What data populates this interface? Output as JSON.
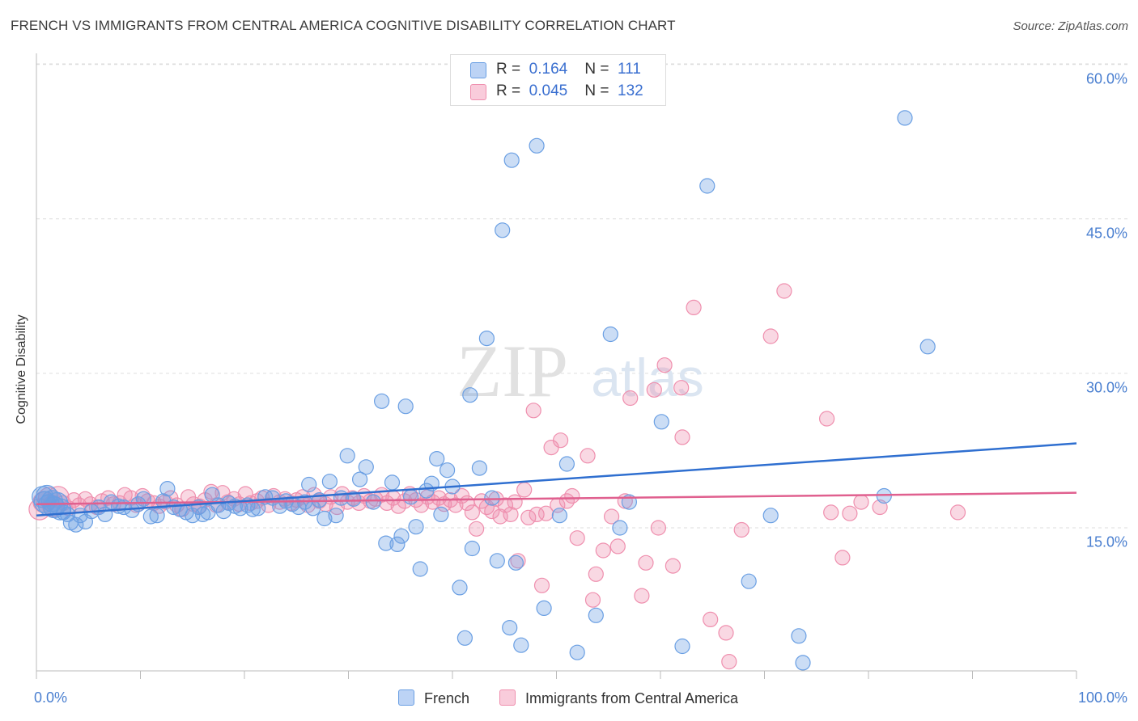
{
  "header": {
    "title": "FRENCH VS IMMIGRANTS FROM CENTRAL AMERICA COGNITIVE DISABILITY CORRELATION CHART",
    "source": "Source: ZipAtlas.com"
  },
  "watermark": {
    "zip": "ZIP",
    "atlas": "atlas"
  },
  "legend": {
    "rows": [
      {
        "r_label": "R =",
        "r_value": "0.164",
        "n_label": "N =",
        "n_value": "111"
      },
      {
        "r_label": "R =",
        "r_value": "0.045",
        "n_label": "N =",
        "n_value": "132"
      }
    ]
  },
  "colors": {
    "french": "#6a9fe3",
    "french_line": "#2f6fd0",
    "immigrants": "#ef8fae",
    "immigrants_line": "#e0608f",
    "tick_text": "#4a7fd0"
  },
  "chart_data": {
    "type": "scatter",
    "title": "FRENCH VS IMMIGRANTS FROM CENTRAL AMERICA COGNITIVE DISABILITY CORRELATION CHART",
    "xlabel": "",
    "ylabel": "Cognitive Disability",
    "xlim": [
      0,
      100
    ],
    "ylim": [
      0,
      62
    ],
    "x_tick_labels": [
      "0.0%",
      "100.0%"
    ],
    "y_ticks": [
      15,
      30,
      45,
      60
    ],
    "y_tick_labels": [
      "15.0%",
      "30.0%",
      "45.0%",
      "60.0%"
    ],
    "grid": true,
    "legend_position": "top-center",
    "series": [
      {
        "name": "French",
        "r": 0.164,
        "n": 111,
        "trend": [
          [
            0,
            16.2
          ],
          [
            100,
            23.2
          ]
        ],
        "points": [
          [
            0.6,
            18.0
          ],
          [
            0.8,
            17.5
          ],
          [
            1.0,
            18.1
          ],
          [
            1.2,
            17.2
          ],
          [
            1.5,
            17.6
          ],
          [
            1.7,
            17.0
          ],
          [
            2.0,
            17.4
          ],
          [
            2.3,
            16.8
          ],
          [
            2.6,
            16.5
          ],
          [
            3.0,
            16.3
          ],
          [
            3.3,
            15.5
          ],
          [
            3.8,
            15.3
          ],
          [
            4.2,
            16.2
          ],
          [
            4.7,
            15.6
          ],
          [
            5.3,
            16.6
          ],
          [
            6.0,
            17.0
          ],
          [
            6.6,
            16.3
          ],
          [
            7.2,
            17.5
          ],
          [
            7.9,
            17.1
          ],
          [
            8.4,
            17.0
          ],
          [
            9.2,
            16.7
          ],
          [
            9.8,
            17.3
          ],
          [
            10.3,
            17.8
          ],
          [
            11.0,
            16.1
          ],
          [
            11.6,
            16.2
          ],
          [
            12.2,
            17.6
          ],
          [
            12.6,
            18.8
          ],
          [
            13.2,
            17.0
          ],
          [
            13.8,
            16.8
          ],
          [
            14.4,
            16.5
          ],
          [
            15.0,
            16.2
          ],
          [
            15.6,
            17.0
          ],
          [
            16.0,
            16.3
          ],
          [
            16.5,
            16.5
          ],
          [
            16.9,
            18.2
          ],
          [
            17.5,
            17.2
          ],
          [
            18.0,
            16.6
          ],
          [
            18.5,
            17.4
          ],
          [
            19.1,
            17.1
          ],
          [
            19.6,
            16.9
          ],
          [
            20.3,
            17.2
          ],
          [
            20.8,
            16.8
          ],
          [
            21.3,
            16.9
          ],
          [
            22.0,
            18.0
          ],
          [
            22.7,
            17.9
          ],
          [
            23.4,
            17.1
          ],
          [
            24.0,
            17.6
          ],
          [
            24.6,
            17.3
          ],
          [
            25.2,
            17.0
          ],
          [
            25.8,
            17.5
          ],
          [
            26.2,
            19.2
          ],
          [
            26.6,
            16.9
          ],
          [
            27.2,
            17.7
          ],
          [
            27.7,
            15.9
          ],
          [
            28.2,
            19.5
          ],
          [
            28.8,
            16.2
          ],
          [
            29.3,
            17.9
          ],
          [
            29.9,
            22.0
          ],
          [
            30.5,
            17.8
          ],
          [
            31.1,
            19.7
          ],
          [
            31.7,
            20.9
          ],
          [
            32.4,
            17.5
          ],
          [
            33.2,
            27.3
          ],
          [
            33.6,
            13.5
          ],
          [
            34.2,
            19.4
          ],
          [
            34.7,
            13.4
          ],
          [
            35.1,
            14.2
          ],
          [
            35.5,
            26.8
          ],
          [
            36.0,
            18.0
          ],
          [
            36.5,
            15.1
          ],
          [
            36.9,
            11.0
          ],
          [
            37.5,
            18.6
          ],
          [
            38.0,
            19.3
          ],
          [
            38.5,
            21.7
          ],
          [
            38.9,
            16.3
          ],
          [
            39.5,
            20.6
          ],
          [
            40.0,
            19.0
          ],
          [
            40.7,
            9.2
          ],
          [
            41.2,
            4.3
          ],
          [
            41.7,
            27.9
          ],
          [
            41.9,
            13.0
          ],
          [
            42.6,
            20.8
          ],
          [
            43.3,
            33.4
          ],
          [
            43.8,
            17.9
          ],
          [
            44.3,
            11.8
          ],
          [
            44.8,
            43.9
          ],
          [
            45.5,
            5.3
          ],
          [
            45.7,
            50.7
          ],
          [
            46.1,
            11.6
          ],
          [
            46.6,
            3.6
          ],
          [
            48.1,
            52.1
          ],
          [
            48.8,
            7.2
          ],
          [
            50.3,
            16.2
          ],
          [
            51.0,
            21.2
          ],
          [
            52.0,
            2.9
          ],
          [
            53.8,
            6.5
          ],
          [
            55.2,
            33.8
          ],
          [
            56.1,
            15.0
          ],
          [
            57.0,
            17.5
          ],
          [
            60.1,
            25.3
          ],
          [
            62.1,
            3.5
          ],
          [
            64.5,
            48.2
          ],
          [
            68.5,
            9.8
          ],
          [
            70.6,
            16.2
          ],
          [
            73.3,
            4.5
          ],
          [
            73.7,
            1.9
          ],
          [
            81.5,
            18.1
          ],
          [
            83.5,
            54.8
          ],
          [
            85.7,
            32.6
          ]
        ]
      },
      {
        "name": "Immigrants from Central America",
        "r": 0.045,
        "n": 132,
        "trend": [
          [
            0,
            17.3
          ],
          [
            100,
            18.4
          ]
        ],
        "points": [
          [
            0.3,
            16.8
          ],
          [
            0.7,
            17.5
          ],
          [
            1.2,
            17.9
          ],
          [
            1.6,
            17.1
          ],
          [
            2.1,
            18.0
          ],
          [
            2.6,
            17.4
          ],
          [
            3.1,
            16.9
          ],
          [
            3.6,
            17.7
          ],
          [
            4.1,
            17.2
          ],
          [
            4.7,
            17.8
          ],
          [
            5.2,
            17.3
          ],
          [
            5.8,
            17.0
          ],
          [
            6.3,
            17.6
          ],
          [
            6.9,
            17.9
          ],
          [
            7.4,
            17.3
          ],
          [
            8.0,
            17.4
          ],
          [
            8.5,
            18.2
          ],
          [
            9.1,
            17.9
          ],
          [
            9.6,
            17.2
          ],
          [
            10.2,
            18.1
          ],
          [
            10.7,
            17.6
          ],
          [
            11.3,
            17.4
          ],
          [
            11.8,
            17.1
          ],
          [
            12.4,
            17.5
          ],
          [
            12.9,
            17.9
          ],
          [
            13.5,
            17.2
          ],
          [
            14.0,
            16.8
          ],
          [
            14.6,
            18.0
          ],
          [
            15.1,
            17.3
          ],
          [
            15.7,
            17.1
          ],
          [
            16.2,
            17.7
          ],
          [
            16.8,
            18.5
          ],
          [
            17.3,
            17.2
          ],
          [
            17.9,
            18.4
          ],
          [
            18.4,
            17.5
          ],
          [
            19.0,
            17.8
          ],
          [
            19.5,
            17.3
          ],
          [
            20.1,
            18.3
          ],
          [
            20.6,
            17.4
          ],
          [
            21.2,
            17.6
          ],
          [
            21.7,
            17.9
          ],
          [
            22.3,
            17.2
          ],
          [
            22.8,
            18.1
          ],
          [
            23.4,
            17.5
          ],
          [
            23.9,
            17.8
          ],
          [
            24.5,
            17.4
          ],
          [
            25.0,
            17.7
          ],
          [
            25.6,
            18.0
          ],
          [
            26.1,
            17.2
          ],
          [
            26.7,
            18.2
          ],
          [
            27.2,
            17.6
          ],
          [
            27.8,
            17.3
          ],
          [
            28.3,
            18.0
          ],
          [
            28.9,
            17.0
          ],
          [
            29.4,
            18.3
          ],
          [
            29.9,
            17.5
          ],
          [
            30.4,
            17.9
          ],
          [
            31.0,
            17.4
          ],
          [
            31.5,
            18.1
          ],
          [
            32.1,
            17.6
          ],
          [
            32.6,
            17.8
          ],
          [
            33.2,
            18.2
          ],
          [
            33.7,
            17.4
          ],
          [
            34.3,
            17.9
          ],
          [
            34.8,
            17.1
          ],
          [
            35.4,
            17.6
          ],
          [
            35.9,
            18.3
          ],
          [
            36.5,
            17.7
          ],
          [
            37.0,
            17.2
          ],
          [
            37.6,
            18.0
          ],
          [
            38.1,
            17.5
          ],
          [
            38.7,
            17.9
          ],
          [
            39.2,
            17.3
          ],
          [
            39.8,
            17.7
          ],
          [
            40.3,
            17.2
          ],
          [
            40.9,
            18.1
          ],
          [
            41.4,
            17.4
          ],
          [
            41.9,
            16.5
          ],
          [
            42.3,
            14.9
          ],
          [
            42.8,
            17.6
          ],
          [
            43.3,
            17.0
          ],
          [
            43.8,
            16.6
          ],
          [
            44.2,
            17.8
          ],
          [
            44.6,
            16.1
          ],
          [
            45.1,
            17.2
          ],
          [
            45.6,
            16.3
          ],
          [
            46.0,
            17.5
          ],
          [
            46.3,
            11.8
          ],
          [
            46.9,
            18.7
          ],
          [
            47.3,
            16.0
          ],
          [
            47.8,
            26.4
          ],
          [
            48.1,
            16.3
          ],
          [
            48.6,
            9.4
          ],
          [
            49.0,
            16.4
          ],
          [
            49.5,
            22.8
          ],
          [
            50.1,
            17.2
          ],
          [
            50.4,
            23.5
          ],
          [
            51.0,
            17.6
          ],
          [
            51.5,
            18.1
          ],
          [
            52.0,
            14.0
          ],
          [
            53.0,
            22.0
          ],
          [
            53.5,
            8.0
          ],
          [
            53.8,
            10.5
          ],
          [
            54.5,
            12.8
          ],
          [
            55.3,
            16.1
          ],
          [
            55.9,
            13.2
          ],
          [
            56.6,
            17.6
          ],
          [
            57.1,
            27.6
          ],
          [
            58.2,
            8.4
          ],
          [
            58.6,
            11.6
          ],
          [
            59.4,
            28.4
          ],
          [
            59.8,
            15.0
          ],
          [
            60.4,
            30.8
          ],
          [
            61.2,
            11.3
          ],
          [
            62.0,
            28.6
          ],
          [
            62.1,
            23.8
          ],
          [
            63.2,
            36.4
          ],
          [
            64.8,
            6.1
          ],
          [
            66.3,
            4.8
          ],
          [
            66.6,
            2.0
          ],
          [
            67.8,
            14.8
          ],
          [
            70.6,
            33.6
          ],
          [
            71.9,
            38.0
          ],
          [
            76.0,
            25.6
          ],
          [
            76.4,
            16.5
          ],
          [
            77.5,
            12.1
          ],
          [
            78.2,
            16.4
          ],
          [
            79.3,
            17.5
          ],
          [
            81.1,
            17.0
          ],
          [
            88.6,
            16.5
          ]
        ]
      }
    ]
  }
}
